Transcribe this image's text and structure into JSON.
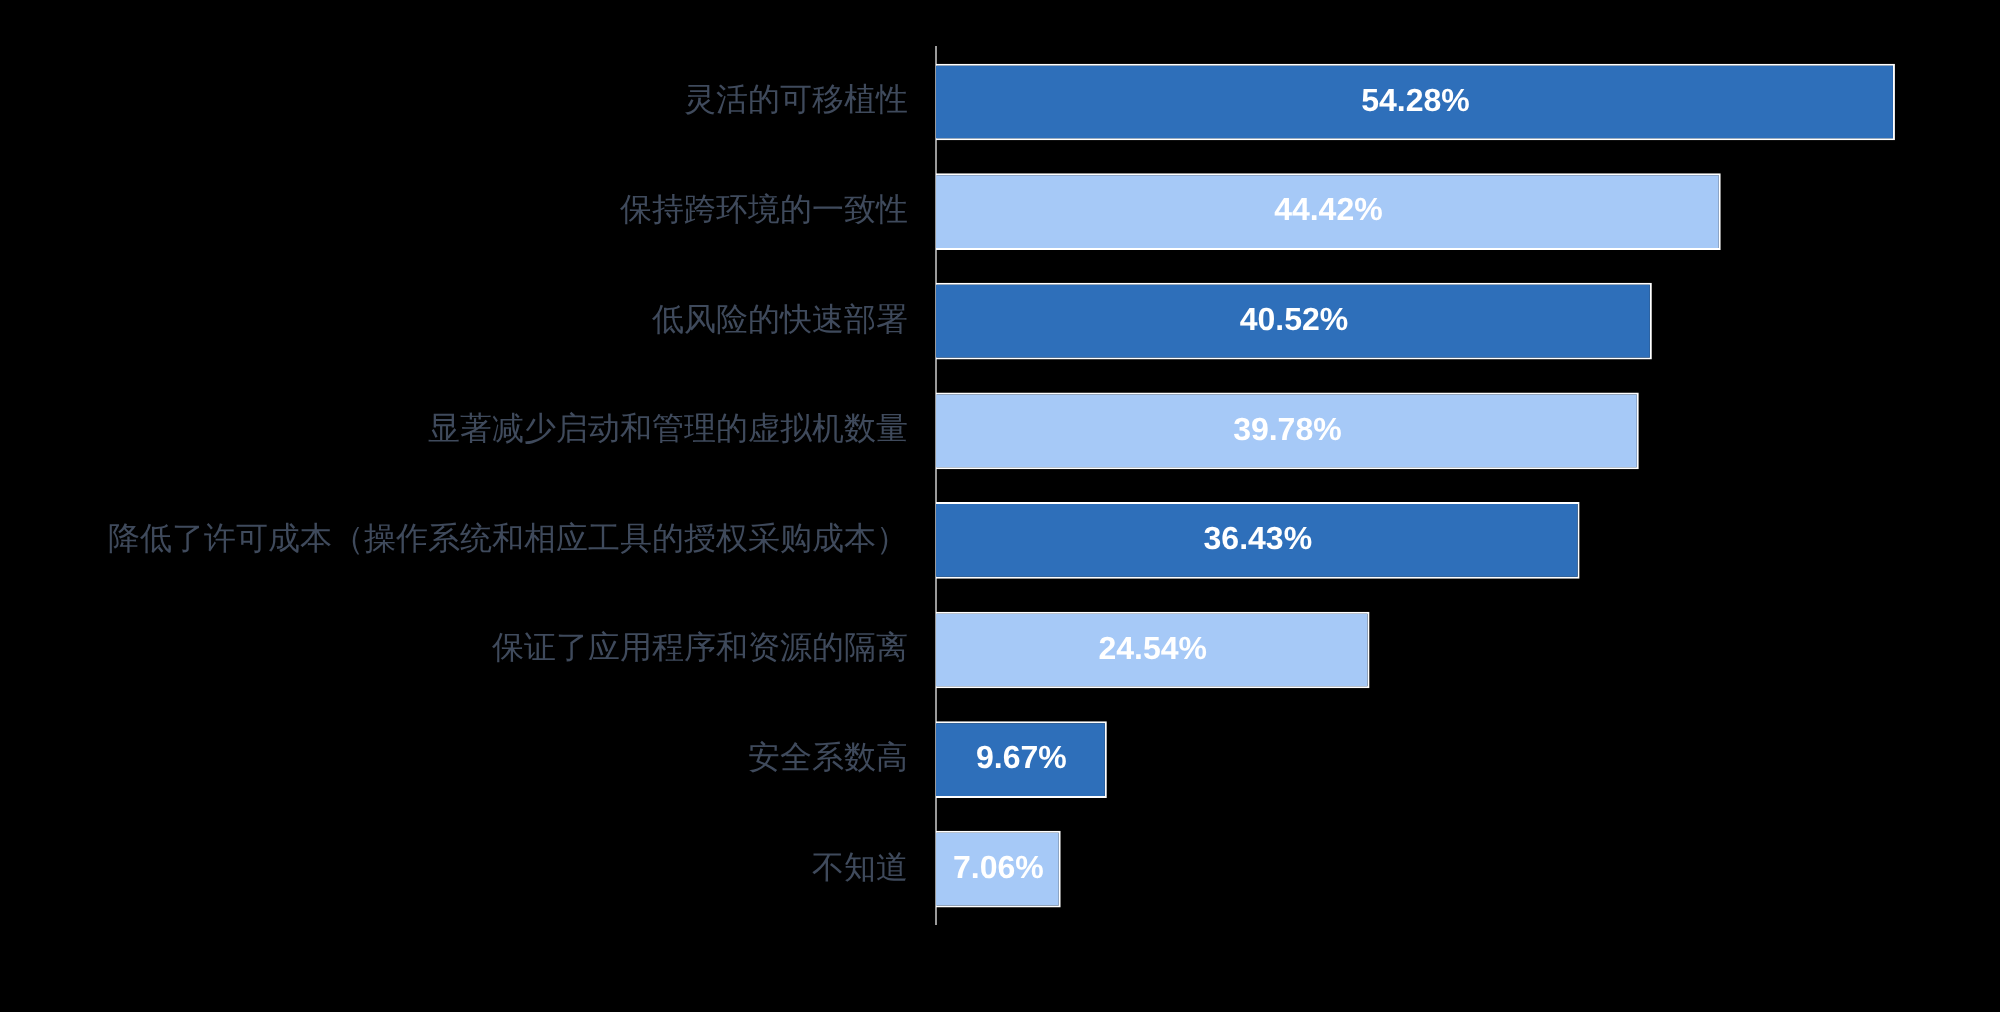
{
  "chart_data": {
    "type": "bar",
    "orientation": "horizontal",
    "categories": [
      "灵活的可移植性",
      "保持跨环境的一致性",
      "低风险的快速部署",
      "显著减少启动和管理的虚拟机数量",
      "降低了许可成本（操作系统和相应工具的授权采购成本）",
      "保证了应用程序和资源的隔离",
      "安全系数高",
      "不知道"
    ],
    "values": [
      54.28,
      44.42,
      40.52,
      39.78,
      36.43,
      24.54,
      9.67,
      7.06
    ],
    "colors": [
      "#2e6fba",
      "#a6c9f7",
      "#2e6fba",
      "#a6c9f7",
      "#2e6fba",
      "#a6c9f7",
      "#2e6fba",
      "#a6c9f7"
    ],
    "value_labels": [
      "54.28%",
      "44.42%",
      "40.52%",
      "39.78%",
      "36.43%",
      "24.54%",
      "9.67%",
      "7.06%"
    ],
    "tick_labels": "y",
    "legend": false
  }
}
